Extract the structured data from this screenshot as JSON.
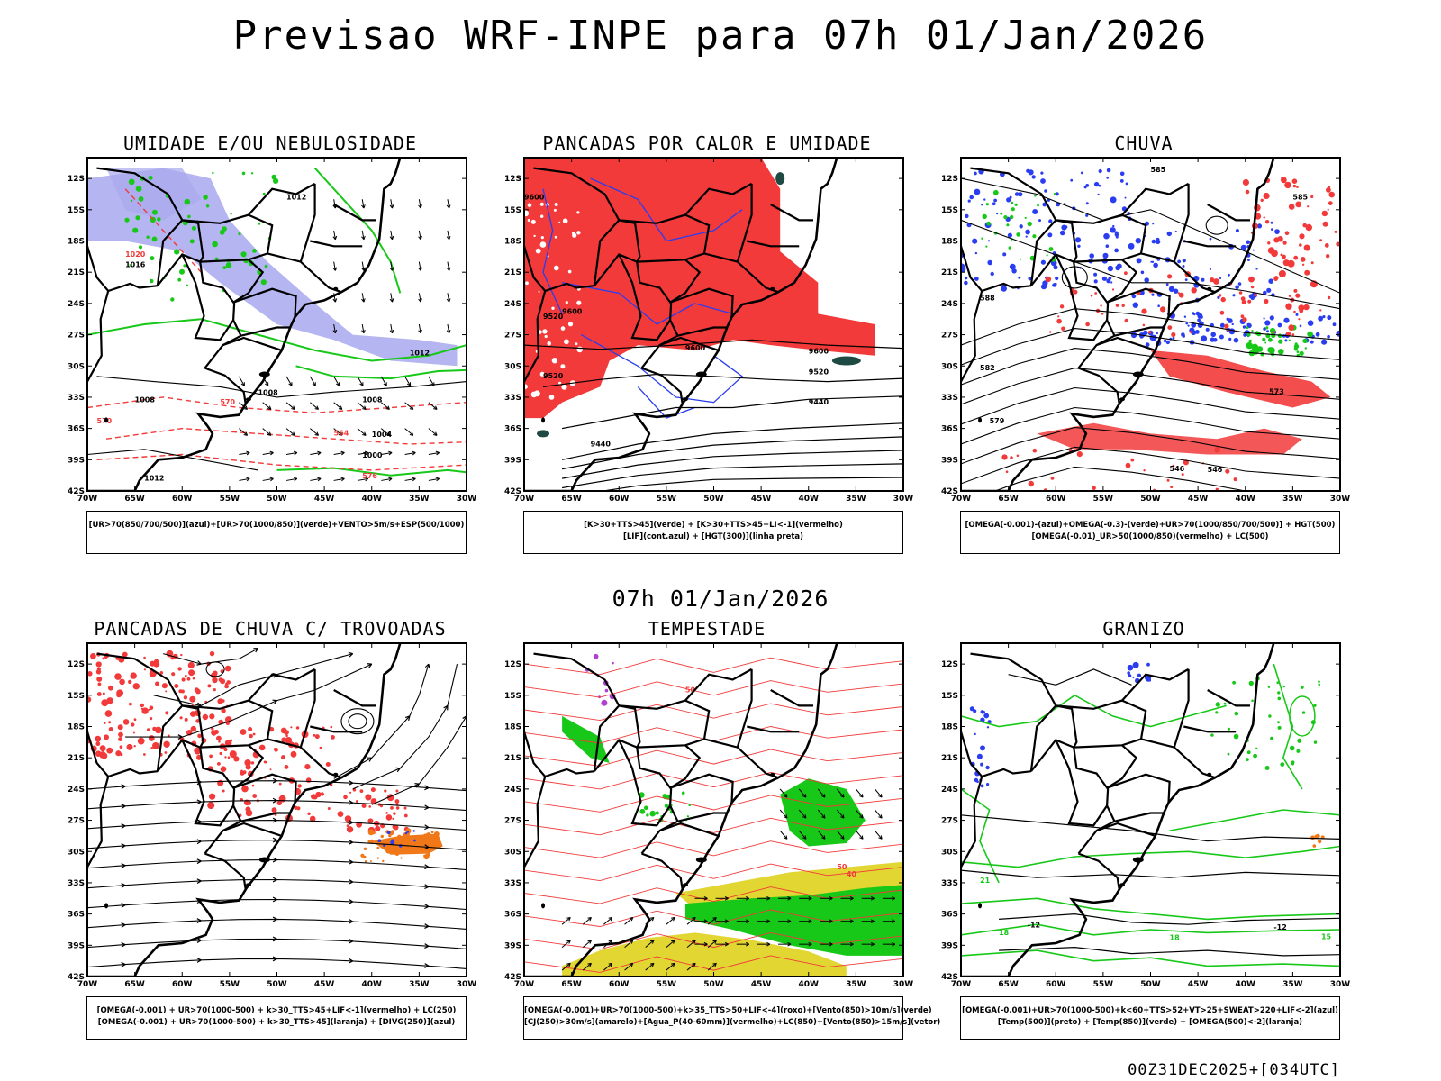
{
  "title": "Previsao WRF-INPE  para 07h 01/Jan/2026",
  "middle_title": "07h 01/Jan/2026",
  "footer": "00Z31DEC2025+[034UTC]",
  "axes": {
    "lat_labels": [
      "12S",
      "15S",
      "18S",
      "21S",
      "24S",
      "27S",
      "30S",
      "33S",
      "36S",
      "39S",
      "42S"
    ],
    "lon_labels": [
      "70W",
      "65W",
      "60W",
      "55W",
      "50W",
      "45W",
      "40W",
      "35W",
      "30W"
    ]
  },
  "colors": {
    "red": "#f23a3a",
    "blue": "#2a3df0",
    "green": "#18c818",
    "lavender": "#a8a8ee",
    "yellow": "#e2d632",
    "darkteal": "#1f4a44",
    "orange": "#f07818"
  },
  "panels": [
    {
      "id": "umidade",
      "title": "UMIDADE E/OU NEBULOSIDADE",
      "legend": [
        "[UR>70(850/700/500)](azul)+[UR>70(1000/850)](verde)+VENTO>5m/s+ESP(500/1000)"
      ],
      "contour_labels": [
        "1012",
        "1008",
        "1016",
        "1020",
        "576",
        "570",
        "564"
      ]
    },
    {
      "id": "pancadas-calor",
      "title": "PANCADAS POR CALOR E UMIDADE",
      "legend": [
        "[K>30+TTS>45](verde) + [K>30+TTS>45+LI<-1](vermelho)",
        "[LIF](cont.azul) + [HGT(300)](linha preta)"
      ],
      "contour_labels": [
        "9600",
        "9520",
        "9440"
      ]
    },
    {
      "id": "chuva",
      "title": "CHUVA",
      "legend": [
        "[OMEGA(-0.001)-(azul)+OMEGA(-0.3)-(verde)+UR>70(1000/850/700/500)] + HGT(500)",
        "[OMEGA(-0.01)_UR>50(1000/850)(vermelho) + LC(500)"
      ],
      "contour_labels": [
        "585",
        "579",
        "573",
        "546",
        "582"
      ]
    },
    {
      "id": "pancadas-trovoadas",
      "title": "PANCADAS DE CHUVA C/ TROVOADAS",
      "legend": [
        "[OMEGA(-0.001) + UR>70(1000-500) + k>30_TTS>45+LIF<-1](vermelho) + LC(250)",
        "[OMEGA(-0.001) + UR>70(1000-500) + k>30_TTS>45](laranja) + [DIVG(250)](azul)"
      ],
      "contour_labels": []
    },
    {
      "id": "tempestade",
      "title": "TEMPESTADE",
      "legend": [
        "[OMEGA(-0.001)+UR>70(1000-500)+k>35_TTS>50+LIF<-4](roxo)+[Vento(850)>10m/s](verde)",
        "[CJ(250)>30m/s](amarelo)+[Agua_P(40-60mm)](vermelho)+LC(850)+[Vento(850)>15m/s](vetor)"
      ],
      "contour_labels": [
        "50",
        "40"
      ]
    },
    {
      "id": "granizo",
      "title": "GRANIZO",
      "legend": [
        "[OMEGA(-0.001)+UR>70(1000-500)+k<60+TTS>52+VT>25+SWEAT>220+LIF<-2](azul)",
        "[Temp(500)](preto) + [Temp(850)](verde) + [OMEGA(500)<-2](laranja)"
      ],
      "contour_labels": [
        "-12",
        "18",
        "21",
        "15"
      ]
    }
  ]
}
